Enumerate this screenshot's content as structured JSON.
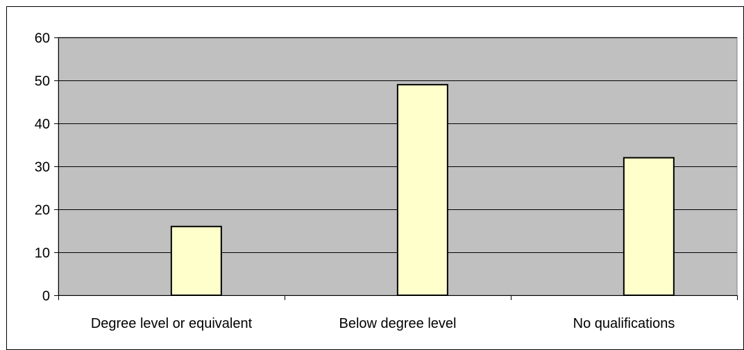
{
  "chart_data": {
    "type": "bar",
    "title": "",
    "xlabel": "",
    "ylabel": "",
    "categories": [
      "Degree level or equivalent",
      "Below degree level",
      "No qualifications"
    ],
    "values": [
      16,
      49,
      32
    ],
    "ylim": [
      0,
      60
    ],
    "yticks": [
      0,
      10,
      20,
      30,
      40,
      50,
      60
    ],
    "grid": "horizontal",
    "legend": "none",
    "colors": {
      "bar_fill": "#ffffcc",
      "bar_stroke": "#000000",
      "plot_background": "#c0c0c0",
      "gridline": "#000000"
    }
  }
}
